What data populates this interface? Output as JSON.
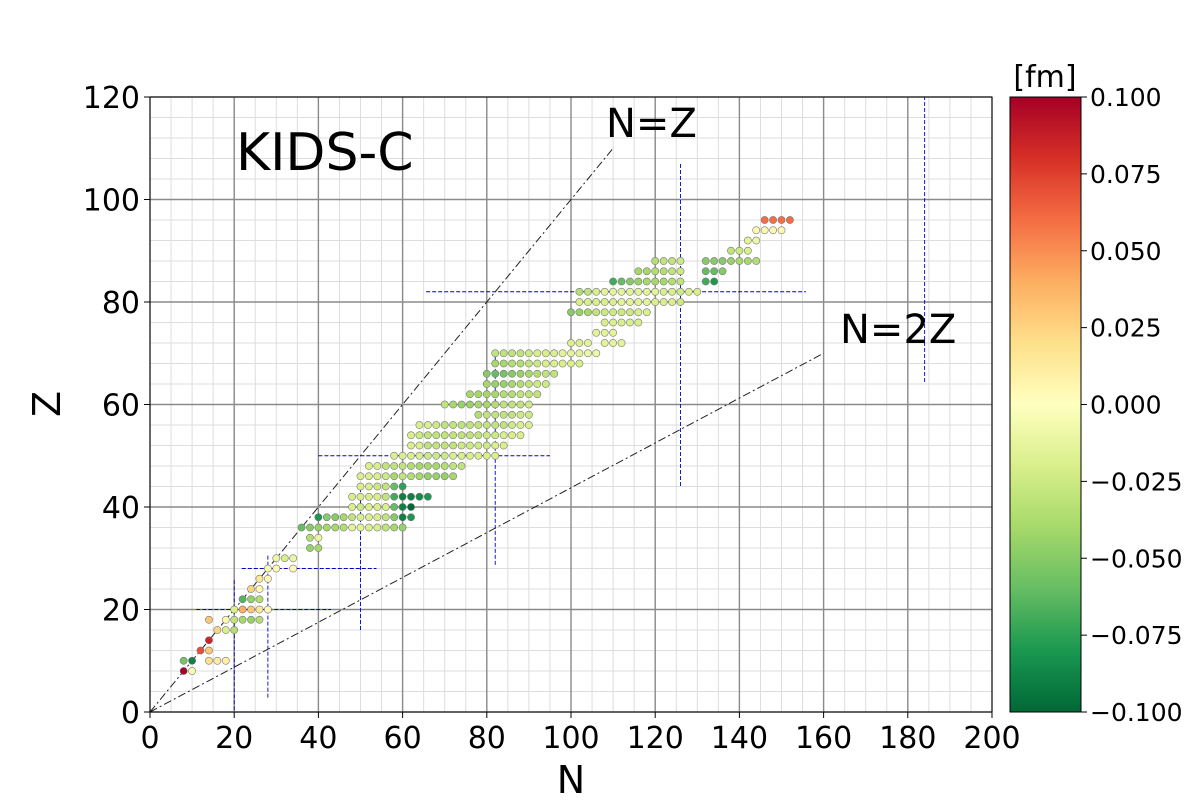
{
  "chart_data": {
    "type": "scatter",
    "title": "KIDS-C",
    "xlabel": "N",
    "ylabel": "Z",
    "xlim": [
      0,
      200
    ],
    "ylim": [
      0,
      120
    ],
    "x_ticks": [
      "0",
      "20",
      "40",
      "60",
      "80",
      "100",
      "120",
      "140",
      "160",
      "180",
      "200"
    ],
    "y_ticks": [
      "0",
      "20",
      "40",
      "60",
      "80",
      "100",
      "120"
    ],
    "grid": true,
    "colorbar": {
      "label": "[fm]",
      "min": -0.1,
      "max": 0.1,
      "tick_labels": [
        "0.100",
        "0.075",
        "0.050",
        "0.025",
        "0.000",
        "−0.025",
        "−0.050",
        "−0.075",
        "−0.100"
      ],
      "colormap": "RdYlGn_r",
      "stops": [
        "#006837",
        "#1a9850",
        "#66bd63",
        "#a6d96a",
        "#d9ef8b",
        "#ffffbf",
        "#fee08b",
        "#fdae61",
        "#f46d43",
        "#d73027",
        "#a50026"
      ]
    },
    "reference_lines": [
      {
        "label": "N=Z",
        "x": [
          0,
          110
        ],
        "y": [
          0,
          110
        ]
      },
      {
        "label": "N=2Z",
        "x": [
          0,
          160
        ],
        "y": [
          0,
          70
        ]
      }
    ],
    "magic_numbers": {
      "values": [
        20,
        28,
        50,
        82,
        126,
        184
      ],
      "color": "#0000cc"
    },
    "points": [
      [
        8,
        8,
        0.1
      ],
      [
        10,
        8,
        -0.005
      ],
      [
        8,
        10,
        -0.055
      ],
      [
        10,
        10,
        -0.09
      ],
      [
        12,
        12,
        0.07
      ],
      [
        14,
        14,
        0.085
      ],
      [
        14,
        12,
        0.03
      ],
      [
        14,
        10,
        0.02
      ],
      [
        16,
        10,
        0.012
      ],
      [
        18,
        10,
        0.01
      ],
      [
        16,
        16,
        0.025
      ],
      [
        14,
        18,
        0.03
      ],
      [
        18,
        16,
        -0.02
      ],
      [
        20,
        16,
        -0.035
      ],
      [
        18,
        18,
        0.005
      ],
      [
        20,
        18,
        -0.03
      ],
      [
        22,
        18,
        -0.04
      ],
      [
        24,
        18,
        -0.045
      ],
      [
        26,
        18,
        -0.035
      ],
      [
        20,
        20,
        -0.02
      ],
      [
        22,
        20,
        0.04
      ],
      [
        24,
        20,
        0.03
      ],
      [
        26,
        20,
        0.015
      ],
      [
        28,
        20,
        0.005
      ],
      [
        22,
        22,
        -0.065
      ],
      [
        24,
        22,
        -0.045
      ],
      [
        26,
        22,
        -0.035
      ],
      [
        24,
        24,
        0.025
      ],
      [
        26,
        24,
        0.005
      ],
      [
        26,
        26,
        0.015
      ],
      [
        28,
        26,
        0.005
      ],
      [
        28,
        28,
        -0.005
      ],
      [
        30,
        28,
        0.005
      ],
      [
        30,
        30,
        -0.01
      ],
      [
        32,
        30,
        -0.02
      ],
      [
        34,
        30,
        -0.01
      ],
      [
        34,
        28,
        0.005
      ],
      [
        36,
        36,
        -0.06
      ],
      [
        38,
        36,
        -0.05
      ],
      [
        40,
        36,
        -0.045
      ],
      [
        42,
        36,
        -0.04
      ],
      [
        38,
        34,
        -0.035
      ],
      [
        38,
        32,
        -0.045
      ],
      [
        40,
        32,
        -0.04
      ],
      [
        40,
        34,
        -0.01
      ],
      [
        40,
        38,
        -0.08
      ],
      [
        42,
        38,
        -0.05
      ],
      [
        44,
        38,
        -0.05
      ],
      [
        46,
        38,
        -0.04
      ],
      [
        48,
        38,
        -0.03
      ],
      [
        44,
        36,
        -0.04
      ],
      [
        46,
        36,
        -0.035
      ],
      [
        48,
        40,
        -0.02
      ],
      [
        50,
        40,
        -0.025
      ],
      [
        52,
        40,
        -0.02
      ],
      [
        54,
        40,
        -0.02
      ],
      [
        56,
        40,
        -0.02
      ],
      [
        58,
        40,
        -0.06
      ],
      [
        60,
        40,
        -0.09
      ],
      [
        62,
        40,
        -0.1
      ],
      [
        48,
        42,
        -0.02
      ],
      [
        50,
        42,
        -0.02
      ],
      [
        52,
        42,
        -0.02
      ],
      [
        54,
        42,
        -0.02
      ],
      [
        56,
        42,
        -0.03
      ],
      [
        58,
        42,
        -0.07
      ],
      [
        60,
        42,
        -0.09
      ],
      [
        62,
        42,
        -0.09
      ],
      [
        64,
        42,
        -0.085
      ],
      [
        66,
        42,
        -0.08
      ],
      [
        50,
        44,
        -0.02
      ],
      [
        52,
        44,
        -0.02
      ],
      [
        54,
        44,
        -0.025
      ],
      [
        56,
        44,
        -0.03
      ],
      [
        58,
        44,
        -0.06
      ],
      [
        60,
        44,
        -0.075
      ],
      [
        50,
        46,
        -0.02
      ],
      [
        52,
        46,
        -0.02
      ],
      [
        54,
        46,
        -0.02
      ],
      [
        56,
        46,
        -0.025
      ],
      [
        58,
        46,
        -0.04
      ],
      [
        48,
        36,
        -0.015
      ],
      [
        50,
        36,
        -0.015
      ],
      [
        52,
        36,
        -0.02
      ],
      [
        54,
        36,
        -0.02
      ],
      [
        56,
        36,
        -0.03
      ],
      [
        58,
        36,
        -0.04
      ],
      [
        60,
        36,
        -0.045
      ],
      [
        50,
        38,
        -0.02
      ],
      [
        52,
        38,
        -0.02
      ],
      [
        54,
        38,
        -0.02
      ],
      [
        56,
        38,
        -0.03
      ],
      [
        58,
        38,
        -0.05
      ],
      [
        60,
        38,
        -0.09
      ],
      [
        62,
        38,
        -0.08
      ],
      [
        52,
        48,
        -0.02
      ],
      [
        54,
        48,
        -0.02
      ],
      [
        56,
        48,
        -0.03
      ],
      [
        58,
        48,
        -0.03
      ],
      [
        60,
        48,
        -0.03
      ],
      [
        58,
        50,
        -0.02
      ],
      [
        60,
        50,
        -0.02
      ],
      [
        62,
        50,
        -0.02
      ],
      [
        64,
        50,
        -0.02
      ],
      [
        66,
        50,
        -0.025
      ],
      [
        68,
        50,
        -0.025
      ],
      [
        70,
        50,
        -0.025
      ],
      [
        72,
        50,
        -0.02
      ],
      [
        74,
        50,
        -0.02
      ],
      [
        76,
        50,
        -0.02
      ],
      [
        78,
        50,
        -0.02
      ],
      [
        80,
        50,
        -0.02
      ],
      [
        82,
        50,
        -0.02
      ],
      [
        60,
        46,
        -0.03
      ],
      [
        62,
        46,
        -0.035
      ],
      [
        64,
        46,
        -0.04
      ],
      [
        66,
        46,
        -0.045
      ],
      [
        68,
        46,
        -0.045
      ],
      [
        70,
        46,
        -0.045
      ],
      [
        72,
        46,
        -0.04
      ],
      [
        62,
        48,
        -0.035
      ],
      [
        64,
        48,
        -0.04
      ],
      [
        66,
        48,
        -0.04
      ],
      [
        68,
        48,
        -0.04
      ],
      [
        70,
        48,
        -0.035
      ],
      [
        72,
        48,
        -0.03
      ],
      [
        74,
        48,
        -0.03
      ],
      [
        62,
        52,
        -0.02
      ],
      [
        64,
        52,
        -0.02
      ],
      [
        66,
        52,
        -0.03
      ],
      [
        68,
        52,
        -0.03
      ],
      [
        70,
        52,
        -0.03
      ],
      [
        72,
        52,
        -0.03
      ],
      [
        74,
        52,
        -0.025
      ],
      [
        76,
        52,
        -0.025
      ],
      [
        78,
        52,
        -0.025
      ],
      [
        80,
        52,
        -0.025
      ],
      [
        82,
        52,
        -0.02
      ],
      [
        84,
        52,
        -0.02
      ],
      [
        62,
        54,
        -0.02
      ],
      [
        64,
        54,
        -0.025
      ],
      [
        66,
        54,
        -0.03
      ],
      [
        68,
        54,
        -0.03
      ],
      [
        70,
        54,
        -0.03
      ],
      [
        72,
        54,
        -0.03
      ],
      [
        74,
        54,
        -0.03
      ],
      [
        76,
        54,
        -0.03
      ],
      [
        78,
        54,
        -0.03
      ],
      [
        80,
        54,
        -0.025
      ],
      [
        82,
        54,
        -0.025
      ],
      [
        84,
        54,
        -0.02
      ],
      [
        86,
        54,
        -0.02
      ],
      [
        88,
        54,
        -0.02
      ],
      [
        64,
        56,
        -0.02
      ],
      [
        66,
        56,
        -0.02
      ],
      [
        68,
        56,
        -0.025
      ],
      [
        70,
        56,
        -0.03
      ],
      [
        72,
        56,
        -0.03
      ],
      [
        74,
        56,
        -0.03
      ],
      [
        76,
        56,
        -0.03
      ],
      [
        78,
        56,
        -0.03
      ],
      [
        80,
        56,
        -0.03
      ],
      [
        82,
        56,
        -0.03
      ],
      [
        84,
        56,
        -0.03
      ],
      [
        86,
        56,
        -0.025
      ],
      [
        88,
        56,
        -0.02
      ],
      [
        90,
        56,
        -0.02
      ],
      [
        78,
        58,
        -0.035
      ],
      [
        80,
        58,
        -0.03
      ],
      [
        82,
        58,
        -0.03
      ],
      [
        84,
        58,
        -0.03
      ],
      [
        86,
        58,
        -0.03
      ],
      [
        88,
        58,
        -0.025
      ],
      [
        90,
        58,
        -0.025
      ],
      [
        70,
        60,
        -0.03
      ],
      [
        72,
        60,
        -0.04
      ],
      [
        74,
        60,
        -0.045
      ],
      [
        76,
        60,
        -0.045
      ],
      [
        78,
        60,
        -0.04
      ],
      [
        80,
        60,
        -0.04
      ],
      [
        82,
        60,
        -0.035
      ],
      [
        84,
        60,
        -0.03
      ],
      [
        86,
        60,
        -0.03
      ],
      [
        88,
        60,
        -0.03
      ],
      [
        90,
        60,
        -0.025
      ],
      [
        76,
        62,
        -0.04
      ],
      [
        78,
        62,
        -0.04
      ],
      [
        80,
        62,
        -0.04
      ],
      [
        82,
        62,
        -0.04
      ],
      [
        84,
        62,
        -0.035
      ],
      [
        86,
        62,
        -0.035
      ],
      [
        88,
        62,
        -0.03
      ],
      [
        90,
        62,
        -0.03
      ],
      [
        92,
        62,
        -0.03
      ],
      [
        80,
        64,
        -0.04
      ],
      [
        82,
        64,
        -0.045
      ],
      [
        84,
        64,
        -0.045
      ],
      [
        86,
        64,
        -0.04
      ],
      [
        88,
        64,
        -0.035
      ],
      [
        90,
        64,
        -0.03
      ],
      [
        92,
        64,
        -0.025
      ],
      [
        94,
        64,
        -0.025
      ],
      [
        80,
        66,
        -0.05
      ],
      [
        82,
        66,
        -0.06
      ],
      [
        84,
        66,
        -0.055
      ],
      [
        86,
        66,
        -0.05
      ],
      [
        88,
        66,
        -0.045
      ],
      [
        90,
        66,
        -0.04
      ],
      [
        92,
        66,
        -0.035
      ],
      [
        94,
        66,
        -0.03
      ],
      [
        96,
        66,
        -0.03
      ],
      [
        82,
        68,
        -0.04
      ],
      [
        84,
        68,
        -0.04
      ],
      [
        86,
        68,
        -0.035
      ],
      [
        88,
        68,
        -0.035
      ],
      [
        90,
        68,
        -0.03
      ],
      [
        92,
        68,
        -0.025
      ],
      [
        94,
        68,
        -0.02
      ],
      [
        96,
        68,
        -0.02
      ],
      [
        98,
        68,
        -0.02
      ],
      [
        100,
        68,
        -0.02
      ],
      [
        102,
        68,
        -0.02
      ],
      [
        82,
        70,
        -0.03
      ],
      [
        84,
        70,
        -0.03
      ],
      [
        86,
        70,
        -0.03
      ],
      [
        88,
        70,
        -0.03
      ],
      [
        90,
        70,
        -0.025
      ],
      [
        92,
        70,
        -0.02
      ],
      [
        94,
        70,
        -0.02
      ],
      [
        96,
        70,
        -0.02
      ],
      [
        98,
        70,
        -0.015
      ],
      [
        100,
        70,
        -0.015
      ],
      [
        102,
        70,
        -0.015
      ],
      [
        104,
        70,
        -0.01
      ],
      [
        106,
        70,
        -0.01
      ],
      [
        100,
        72,
        -0.02
      ],
      [
        102,
        72,
        -0.02
      ],
      [
        104,
        72,
        -0.015
      ],
      [
        108,
        72,
        -0.015
      ],
      [
        110,
        72,
        -0.015
      ],
      [
        112,
        72,
        -0.015
      ],
      [
        106,
        74,
        -0.015
      ],
      [
        108,
        74,
        -0.015
      ],
      [
        110,
        74,
        -0.015
      ],
      [
        108,
        76,
        -0.02
      ],
      [
        110,
        76,
        -0.02
      ],
      [
        112,
        76,
        -0.02
      ],
      [
        114,
        76,
        -0.02
      ],
      [
        116,
        76,
        -0.02
      ],
      [
        100,
        78,
        -0.05
      ],
      [
        102,
        78,
        -0.045
      ],
      [
        104,
        78,
        -0.04
      ],
      [
        106,
        78,
        -0.03
      ],
      [
        108,
        78,
        -0.025
      ],
      [
        110,
        78,
        -0.025
      ],
      [
        112,
        78,
        -0.025
      ],
      [
        114,
        78,
        -0.025
      ],
      [
        116,
        78,
        -0.02
      ],
      [
        118,
        78,
        -0.02
      ],
      [
        102,
        80,
        -0.02
      ],
      [
        104,
        80,
        -0.02
      ],
      [
        106,
        80,
        -0.02
      ],
      [
        108,
        80,
        -0.02
      ],
      [
        110,
        80,
        -0.02
      ],
      [
        112,
        80,
        -0.015
      ],
      [
        114,
        80,
        -0.015
      ],
      [
        116,
        80,
        -0.015
      ],
      [
        118,
        80,
        -0.015
      ],
      [
        120,
        80,
        -0.02
      ],
      [
        122,
        80,
        -0.02
      ],
      [
        124,
        80,
        -0.02
      ],
      [
        126,
        80,
        -0.025
      ],
      [
        102,
        82,
        -0.035
      ],
      [
        104,
        82,
        -0.03
      ],
      [
        106,
        82,
        -0.02
      ],
      [
        108,
        82,
        -0.015
      ],
      [
        110,
        82,
        -0.015
      ],
      [
        112,
        82,
        -0.015
      ],
      [
        114,
        82,
        -0.015
      ],
      [
        116,
        82,
        -0.015
      ],
      [
        118,
        82,
        -0.015
      ],
      [
        120,
        82,
        -0.015
      ],
      [
        122,
        82,
        -0.02
      ],
      [
        124,
        82,
        -0.02
      ],
      [
        126,
        82,
        -0.025
      ],
      [
        128,
        82,
        -0.02
      ],
      [
        130,
        82,
        -0.02
      ],
      [
        110,
        84,
        -0.07
      ],
      [
        112,
        84,
        -0.06
      ],
      [
        114,
        84,
        -0.05
      ],
      [
        116,
        84,
        -0.045
      ],
      [
        118,
        84,
        -0.04
      ],
      [
        120,
        84,
        -0.04
      ],
      [
        122,
        84,
        -0.04
      ],
      [
        124,
        84,
        -0.035
      ],
      [
        126,
        84,
        -0.03
      ],
      [
        116,
        86,
        -0.04
      ],
      [
        118,
        86,
        -0.04
      ],
      [
        120,
        86,
        -0.035
      ],
      [
        122,
        86,
        -0.035
      ],
      [
        124,
        86,
        -0.03
      ],
      [
        126,
        86,
        -0.025
      ],
      [
        120,
        88,
        -0.035
      ],
      [
        122,
        88,
        -0.03
      ],
      [
        124,
        88,
        -0.03
      ],
      [
        126,
        88,
        -0.025
      ],
      [
        132,
        84,
        -0.07
      ],
      [
        134,
        84,
        -0.08
      ],
      [
        132,
        86,
        -0.06
      ],
      [
        134,
        86,
        -0.06
      ],
      [
        136,
        86,
        -0.05
      ],
      [
        132,
        88,
        -0.05
      ],
      [
        134,
        88,
        -0.05
      ],
      [
        136,
        88,
        -0.05
      ],
      [
        138,
        88,
        -0.045
      ],
      [
        140,
        88,
        -0.04
      ],
      [
        142,
        88,
        -0.04
      ],
      [
        144,
        88,
        -0.035
      ],
      [
        138,
        90,
        -0.03
      ],
      [
        140,
        90,
        -0.025
      ],
      [
        142,
        90,
        -0.02
      ],
      [
        142,
        92,
        -0.015
      ],
      [
        144,
        92,
        -0.01
      ],
      [
        144,
        94,
        0.005
      ],
      [
        146,
        94,
        0.005
      ],
      [
        148,
        94,
        0.005
      ],
      [
        150,
        94,
        0.005
      ],
      [
        146,
        96,
        0.06
      ],
      [
        148,
        96,
        0.06
      ],
      [
        150,
        96,
        0.06
      ],
      [
        152,
        96,
        0.06
      ]
    ]
  }
}
